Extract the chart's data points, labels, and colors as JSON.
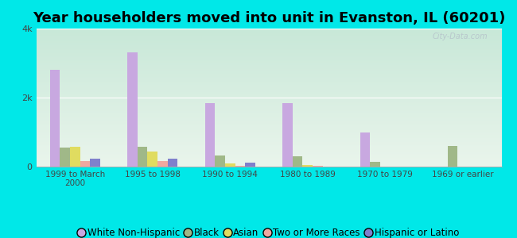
{
  "title": "Year householders moved into unit in Evanston, IL (60201)",
  "categories": [
    "1999 to March\n2000",
    "1995 to 1998",
    "1990 to 1994",
    "1980 to 1989",
    "1970 to 1979",
    "1969 or earlier"
  ],
  "series": {
    "White Non-Hispanic": [
      2800,
      3300,
      1850,
      1850,
      1000,
      0
    ],
    "Black": [
      550,
      580,
      320,
      310,
      140,
      600
    ],
    "Asian": [
      580,
      430,
      90,
      40,
      0,
      0
    ],
    "Two or More Races": [
      150,
      155,
      30,
      30,
      0,
      0
    ],
    "Hispanic or Latino": [
      220,
      220,
      110,
      0,
      0,
      0
    ]
  },
  "colors": {
    "White Non-Hispanic": "#c8a8e0",
    "Black": "#a0b888",
    "Asian": "#e0dc60",
    "Two or More Races": "#f0a8a0",
    "Hispanic or Latino": "#8080cc"
  },
  "ylim": [
    0,
    4000
  ],
  "yticks": [
    0,
    2000,
    4000
  ],
  "ytick_labels": [
    "0",
    "2k",
    "4k"
  ],
  "background_color": "#00e8e8",
  "plot_bg_top": "#c8e8d8",
  "plot_bg_bottom": "#eaf5ec",
  "watermark": "City-Data.com",
  "title_fontsize": 13,
  "legend_fontsize": 8.5,
  "bar_width": 0.13
}
